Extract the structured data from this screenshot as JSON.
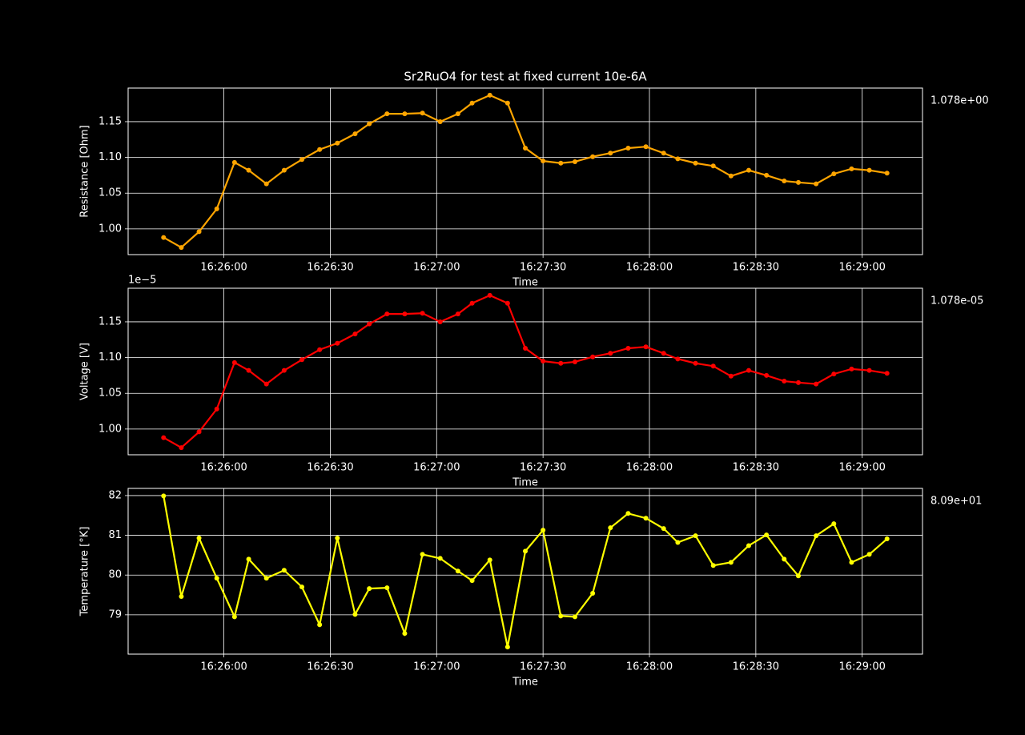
{
  "chart_data": [
    {
      "type": "line",
      "title": "Sr2RuO4 for test at fixed current 10e-6A",
      "xlabel": "Time",
      "ylabel": "Resistance [Ohm]",
      "annotation": "1.078e+00",
      "x": [
        "16:25:43",
        "16:25:48",
        "16:25:53",
        "16:25:58",
        "16:26:03",
        "16:26:07",
        "16:26:12",
        "16:26:17",
        "16:26:22",
        "16:26:27",
        "16:26:32",
        "16:26:37",
        "16:26:41",
        "16:26:46",
        "16:26:51",
        "16:26:56",
        "16:27:01",
        "16:27:06",
        "16:27:10",
        "16:27:15",
        "16:27:20",
        "16:27:25",
        "16:27:30",
        "16:27:35",
        "16:27:39",
        "16:27:44",
        "16:27:49",
        "16:27:54",
        "16:27:59",
        "16:28:04",
        "16:28:08",
        "16:28:13",
        "16:28:18",
        "16:28:23",
        "16:28:28",
        "16:28:33",
        "16:28:38",
        "16:28:42",
        "16:28:47",
        "16:28:52",
        "16:28:57",
        "16:29:02",
        "16:29:07"
      ],
      "series": [
        {
          "name": "Resistance",
          "color": "#ffa500",
          "values": [
            0.988,
            0.974,
            0.996,
            1.028,
            1.093,
            1.082,
            1.063,
            1.082,
            1.097,
            1.111,
            1.12,
            1.133,
            1.147,
            1.161,
            1.161,
            1.162,
            1.15,
            1.161,
            1.176,
            1.187,
            1.176,
            1.113,
            1.095,
            1.092,
            1.094,
            1.101,
            1.106,
            1.113,
            1.115,
            1.106,
            1.098,
            1.092,
            1.088,
            1.074,
            1.082,
            1.075,
            1.067,
            1.065,
            1.063,
            1.077,
            1.084,
            1.082,
            1.078
          ]
        }
      ],
      "xlim": [
        "16:25:33",
        "16:29:17"
      ],
      "xticks": [
        "16:26:00",
        "16:26:30",
        "16:27:00",
        "16:27:30",
        "16:28:00",
        "16:28:30",
        "16:29:00"
      ],
      "ylim": [
        0.964,
        1.197
      ],
      "yticks": [
        {
          "value": 1,
          "label": "1.00"
        },
        {
          "value": 1.05,
          "label": "1.05"
        },
        {
          "value": 1.1,
          "label": "1.10"
        },
        {
          "value": 1.15,
          "label": "1.15"
        }
      ],
      "grid": true
    },
    {
      "type": "line",
      "xlabel": "Time",
      "ylabel": "Voltage [V]",
      "y_offset_label": "1e−5",
      "annotation": "1.078e-05",
      "x": [
        "16:25:43",
        "16:25:48",
        "16:25:53",
        "16:25:58",
        "16:26:03",
        "16:26:07",
        "16:26:12",
        "16:26:17",
        "16:26:22",
        "16:26:27",
        "16:26:32",
        "16:26:37",
        "16:26:41",
        "16:26:46",
        "16:26:51",
        "16:26:56",
        "16:27:01",
        "16:27:06",
        "16:27:10",
        "16:27:15",
        "16:27:20",
        "16:27:25",
        "16:27:30",
        "16:27:35",
        "16:27:39",
        "16:27:44",
        "16:27:49",
        "16:27:54",
        "16:27:59",
        "16:28:04",
        "16:28:08",
        "16:28:13",
        "16:28:18",
        "16:28:23",
        "16:28:28",
        "16:28:33",
        "16:28:38",
        "16:28:42",
        "16:28:47",
        "16:28:52",
        "16:28:57",
        "16:29:02",
        "16:29:07"
      ],
      "series": [
        {
          "name": "Voltage",
          "color": "#ff0000",
          "values": [
            0.988,
            0.974,
            0.996,
            1.028,
            1.093,
            1.082,
            1.063,
            1.082,
            1.097,
            1.111,
            1.12,
            1.133,
            1.147,
            1.161,
            1.161,
            1.162,
            1.15,
            1.161,
            1.176,
            1.187,
            1.176,
            1.113,
            1.095,
            1.092,
            1.094,
            1.101,
            1.106,
            1.113,
            1.115,
            1.106,
            1.098,
            1.092,
            1.088,
            1.074,
            1.082,
            1.075,
            1.067,
            1.065,
            1.063,
            1.077,
            1.084,
            1.082,
            1.078
          ]
        }
      ],
      "xlim": [
        "16:25:33",
        "16:29:17"
      ],
      "xticks": [
        "16:26:00",
        "16:26:30",
        "16:27:00",
        "16:27:30",
        "16:28:00",
        "16:28:30",
        "16:29:00"
      ],
      "ylim": [
        0.964,
        1.197
      ],
      "yticks": [
        {
          "value": 1,
          "label": "1.00"
        },
        {
          "value": 1.05,
          "label": "1.05"
        },
        {
          "value": 1.1,
          "label": "1.10"
        },
        {
          "value": 1.15,
          "label": "1.15"
        }
      ],
      "grid": true
    },
    {
      "type": "line",
      "xlabel": "Time",
      "ylabel": "Temperature [°K]",
      "annotation": "8.09e+01",
      "x": [
        "16:25:43",
        "16:25:48",
        "16:25:53",
        "16:25:58",
        "16:26:03",
        "16:26:07",
        "16:26:12",
        "16:26:17",
        "16:26:22",
        "16:26:27",
        "16:26:32",
        "16:26:37",
        "16:26:41",
        "16:26:46",
        "16:26:51",
        "16:26:56",
        "16:27:01",
        "16:27:06",
        "16:27:10",
        "16:27:15",
        "16:27:20",
        "16:27:25",
        "16:27:30",
        "16:27:35",
        "16:27:39",
        "16:27:44",
        "16:27:49",
        "16:27:54",
        "16:27:59",
        "16:28:04",
        "16:28:08",
        "16:28:13",
        "16:28:18",
        "16:28:23",
        "16:28:28",
        "16:28:33",
        "16:28:38",
        "16:28:42",
        "16:28:47",
        "16:28:52",
        "16:28:57",
        "16:29:02",
        "16:29:07"
      ],
      "series": [
        {
          "name": "Temperature",
          "color": "#ffff00",
          "values": [
            81.99,
            79.46,
            80.93,
            79.92,
            78.95,
            80.4,
            79.92,
            80.12,
            79.7,
            78.75,
            80.93,
            79.01,
            79.66,
            79.68,
            78.53,
            80.52,
            80.42,
            80.1,
            79.86,
            80.38,
            78.19,
            80.6,
            81.13,
            78.97,
            78.95,
            79.54,
            81.19,
            81.55,
            81.43,
            81.17,
            80.82,
            80.99,
            80.24,
            80.32,
            80.74,
            81.01,
            80.4,
            79.98,
            80.99,
            81.29,
            80.32,
            80.52,
            80.91
          ]
        }
      ],
      "xlim": [
        "16:25:33",
        "16:29:17"
      ],
      "xticks": [
        "16:26:00",
        "16:26:30",
        "16:27:00",
        "16:27:30",
        "16:28:00",
        "16:28:30",
        "16:29:00"
      ],
      "ylim": [
        78.01,
        82.18
      ],
      "yticks": [
        79,
        80,
        81,
        82
      ],
      "grid": true
    }
  ]
}
